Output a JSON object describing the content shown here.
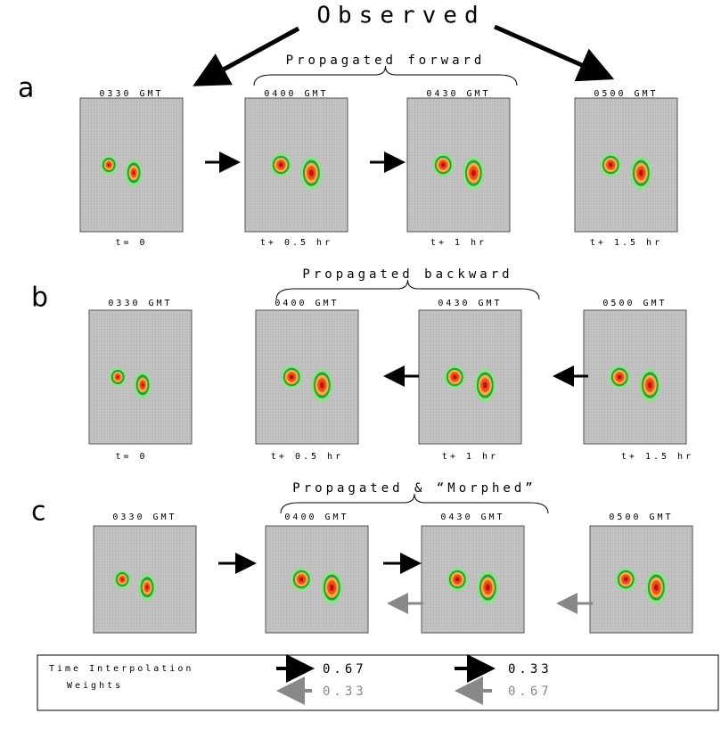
{
  "title": "Observed",
  "rows": [
    {
      "label": "a",
      "caption": "Propagated forward",
      "panels": [
        {
          "time": "0330 GMT",
          "offset": "t= 0"
        },
        {
          "time": "0400 GMT",
          "offset": "t+ 0.5 hr"
        },
        {
          "time": "0430 GMT",
          "offset": "t+ 1 hr"
        },
        {
          "time": "0500 GMT",
          "offset": "t+ 1.5 hr"
        }
      ]
    },
    {
      "label": "b",
      "caption": "Propagated backward",
      "panels": [
        {
          "time": "0330 GMT",
          "offset": "t= 0"
        },
        {
          "time": "0400 GMT",
          "offset": "t+ 0.5 hr"
        },
        {
          "time": "0430 GMT",
          "offset": "t+ 1 hr"
        },
        {
          "time": "0500 GMT",
          "offset": "t+ 1.5 hr"
        }
      ]
    },
    {
      "label": "c",
      "caption": "Propagated & “Morphed”",
      "panels": [
        {
          "time": "0330 GMT"
        },
        {
          "time": "0400 GMT"
        },
        {
          "time": "0430 GMT"
        },
        {
          "time": "0500 GMT"
        }
      ]
    }
  ],
  "legend": {
    "title": "Time Interpolation",
    "subtitle": "Weights",
    "weights": [
      {
        "forward": "0.67",
        "backward": "0.33"
      },
      {
        "forward": "0.33",
        "backward": "0.67"
      }
    ]
  }
}
